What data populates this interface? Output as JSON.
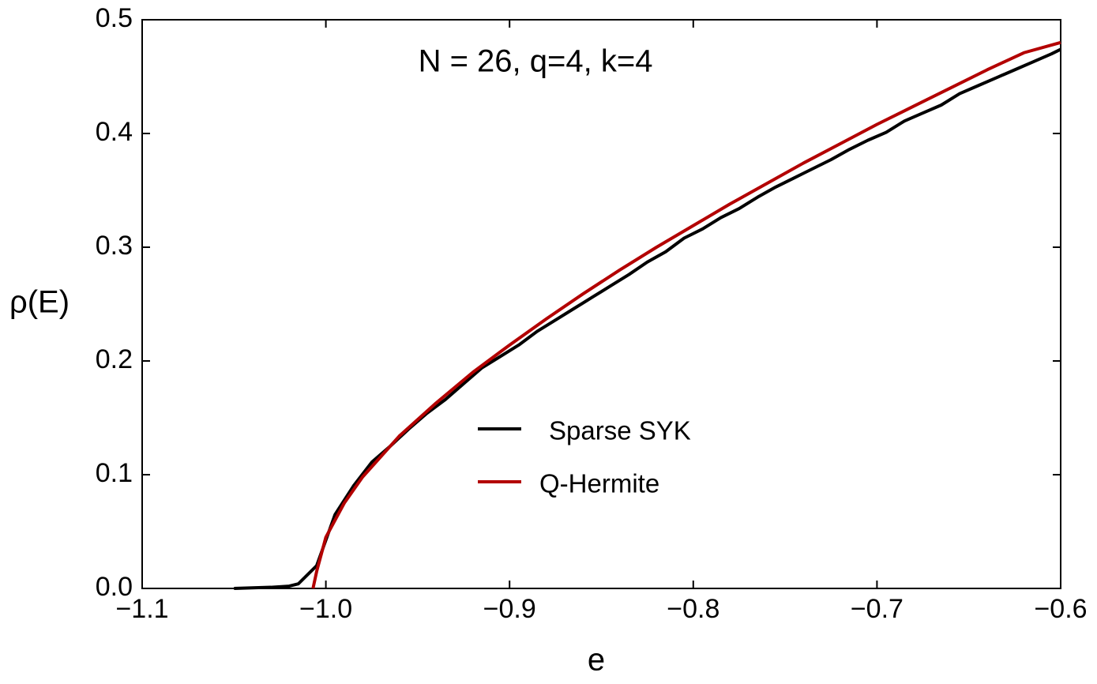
{
  "chart_data": {
    "type": "line",
    "title": "N = 26, q=4, k=4",
    "x_label": "e",
    "y_label": "ρ(E)",
    "xlim": [
      -1.1,
      -0.6
    ],
    "ylim": [
      0,
      0.5
    ],
    "xticks": [
      {
        "value": -1.1,
        "label": "−1.1"
      },
      {
        "value": -1.0,
        "label": "−1.0"
      },
      {
        "value": -0.9,
        "label": "−0.9"
      },
      {
        "value": -0.8,
        "label": "−0.8"
      },
      {
        "value": -0.7,
        "label": "−0.7"
      },
      {
        "value": -0.6,
        "label": "−0.6"
      }
    ],
    "yticks": [
      {
        "value": 0,
        "label": "0.0"
      },
      0.1,
      0.2,
      0.3,
      0.4,
      0.5
    ],
    "legend": "center",
    "series": [
      {
        "name": "Sparse SYK",
        "color": "#000000",
        "x": [
          -1.05,
          -1.04,
          -1.03,
          -1.02,
          -1.015,
          -1.005,
          -0.995,
          -0.985,
          -0.975,
          -0.965,
          -0.955,
          -0.945,
          -0.935,
          -0.925,
          -0.915,
          -0.905,
          -0.895,
          -0.885,
          -0.875,
          -0.865,
          -0.855,
          -0.845,
          -0.835,
          -0.825,
          -0.815,
          -0.805,
          -0.795,
          -0.785,
          -0.775,
          -0.765,
          -0.755,
          -0.745,
          -0.735,
          -0.725,
          -0.715,
          -0.705,
          -0.695,
          -0.685,
          -0.675,
          -0.665,
          -0.655,
          -0.645,
          -0.635,
          -0.625,
          -0.615,
          -0.605,
          -0.6
        ],
        "values": [
          0,
          0.0005,
          0.001,
          0.002,
          0.004,
          0.02,
          0.065,
          0.09,
          0.111,
          0.125,
          0.14,
          0.154,
          0.166,
          0.18,
          0.194,
          0.204,
          0.214,
          0.226,
          0.236,
          0.246,
          0.256,
          0.266,
          0.276,
          0.287,
          0.296,
          0.308,
          0.316,
          0.326,
          0.334,
          0.344,
          0.353,
          0.361,
          0.369,
          0.377,
          0.386,
          0.394,
          0.401,
          0.411,
          0.418,
          0.425,
          0.435,
          0.442,
          0.449,
          0.456,
          0.463,
          0.47,
          0.474
        ]
      },
      {
        "name": "Q-Hermite",
        "color": "#b30000",
        "x": [
          -1.007,
          -1.005,
          -1.0,
          -0.99,
          -0.98,
          -0.96,
          -0.94,
          -0.92,
          -0.9,
          -0.88,
          -0.86,
          -0.84,
          -0.82,
          -0.8,
          -0.78,
          -0.76,
          -0.74,
          -0.72,
          -0.7,
          -0.68,
          -0.66,
          -0.64,
          -0.62,
          -0.6
        ],
        "values": [
          0,
          0.015,
          0.045,
          0.075,
          0.098,
          0.134,
          0.163,
          0.19,
          0.214,
          0.237,
          0.259,
          0.28,
          0.3,
          0.319,
          0.338,
          0.356,
          0.374,
          0.391,
          0.408,
          0.424,
          0.44,
          0.456,
          0.471,
          0.48
        ]
      }
    ]
  }
}
